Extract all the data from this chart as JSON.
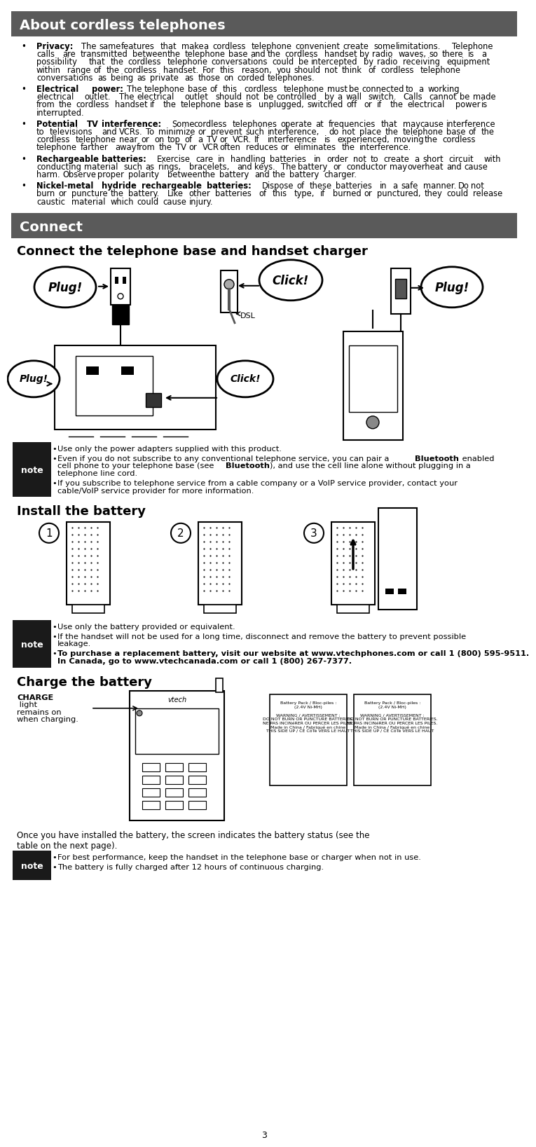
{
  "page_bg": "#ffffff",
  "header1_bg": "#5a5a5a",
  "header1_text": "About cordless telephones",
  "header1_color": "#ffffff",
  "header2_bg": "#5a5a5a",
  "header2_text": "Connect",
  "header2_color": "#ffffff",
  "section1_title": "Connect the telephone base and handset charger",
  "section2_title": "Install the battery",
  "section3_title": "Charge the battery",
  "bullet_items": [
    {
      "bold": "Privacy:",
      "text": " The same features that make a cordless telephone convenient create some limitations. Telephone calls are transmitted between the telephone base and the cordless handset by radio waves, so there is a possibility that the cordless telephone conversations could be intercepted by radio receiving equipment within range of the cordless handset. For this reason, you should not think of cordless telephone conversations as being as private as those on corded telephones."
    },
    {
      "bold": "Electrical power:",
      "text": " The telephone base of this cordless telephone must be connected to a working electrical outlet. The electrical outlet should not be controlled by a wall switch. Calls cannot be made from the cordless handset if the telephone base is unplugged, switched off or if the electrical power is interrupted."
    },
    {
      "bold": "Potential TV interference:",
      "text": " Some cordless telephones operate at frequencies that may cause interference to televisions and VCRs. To minimize or prevent such interference, do not place the telephone base of the cordless telephone near or on top of a TV or VCR. If interference is experienced, moving the cordless telephone farther away from the TV or VCR often reduces or eliminates the interference."
    },
    {
      "bold": "Rechargeable batteries:",
      "text": " Exercise care in handling batteries in order not to create a short circuit with conducting material such as rings, bracelets, and keys. The battery or conductor may overheat and cause harm. Observe proper polarity between the battery and the battery charger."
    },
    {
      "bold": "Nickel-metal hydride rechargeable batteries:",
      "text": " Dispose of these batteries in a safe manner. Do not burn or puncture the battery. Like other batteries of this type, if burned or punctured, they could release caustic material which could cause injury."
    }
  ],
  "connect_notes": [
    {
      "bold": "",
      "text": "Use only the power adapters supplied with this product."
    },
    {
      "bold": "Bluetooth",
      "text": "Even if you do not subscribe to any conventional telephone service, you can pair a Bluetooth enabled cell phone to your telephone base (see Bluetooth), and use the cell line alone without plugging in a telephone line cord."
    },
    {
      "bold": "",
      "text": "If you subscribe to telephone service from a cable company or a VoIP service provider, contact your cable/VoIP service provider for more information."
    }
  ],
  "install_notes": [
    {
      "bold": "",
      "text": "Use only the battery provided or equivalent."
    },
    {
      "bold": "",
      "text": "If the handset will not be used for a long time, disconnect and remove the battery to prevent possible leakage."
    },
    {
      "bold": "www.vtechphones.com",
      "text": "To purchase a replacement battery, visit our website at www.vtechphones.com or call 1 (800) 595-9511. In Canada, go to www.vtechcanada.com or call 1 (800) 267-7377."
    }
  ],
  "charge_notes": [
    {
      "bold": "",
      "text": "For best performance, keep the handset in the telephone base or charger when not in use."
    },
    {
      "bold": "",
      "text": "The battery is fully charged after 12 hours of continuous charging."
    }
  ],
  "charge_text": "Once you have installed the battery, the screen indicates the battery status (see the\ntable on the next page).",
  "page_number": "3",
  "note_bg": "#1a1a1a",
  "note_text_color": "#ffffff",
  "note_label": "note"
}
